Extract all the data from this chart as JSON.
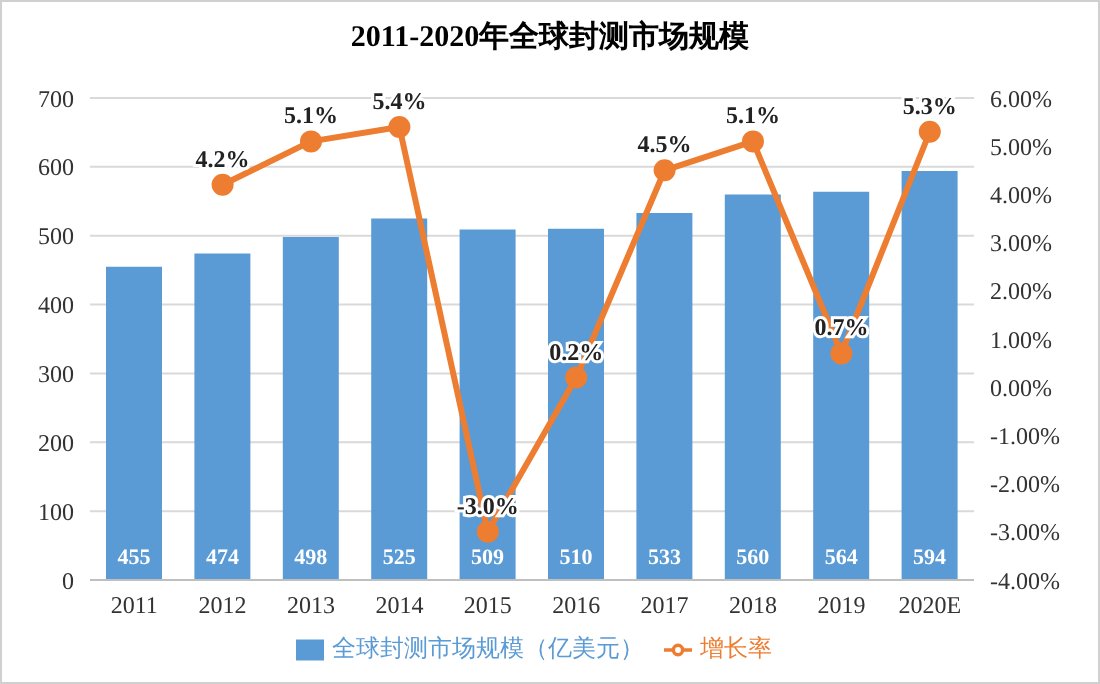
{
  "chart_data": {
    "type": "bar",
    "title": "2011-2020年全球封测市场规模",
    "categories": [
      "2011",
      "2012",
      "2013",
      "2014",
      "2015",
      "2016",
      "2017",
      "2018",
      "2019",
      "2020E"
    ],
    "series": [
      {
        "name": "全球封测市场规模（亿美元）",
        "color": "#5b9bd5",
        "values": [
          455,
          474,
          498,
          525,
          509,
          510,
          533,
          560,
          564,
          594
        ],
        "value_labels": [
          "455",
          "474",
          "498",
          "525",
          "509",
          "510",
          "533",
          "560",
          "564",
          "594"
        ]
      },
      {
        "name": "增长率",
        "type": "line",
        "axis": "y2",
        "color": "#ed7d31",
        "values": [
          null,
          4.2,
          5.1,
          5.4,
          -3.0,
          0.2,
          4.5,
          5.1,
          0.7,
          5.3
        ],
        "value_labels": [
          null,
          "4.2%",
          "5.1%",
          "5.4%",
          "-3.0%",
          "0.2%",
          "4.5%",
          "5.1%",
          "0.7%",
          "5.3%"
        ]
      }
    ],
    "ylim": [
      0,
      700
    ],
    "yticks": [
      0,
      100,
      200,
      300,
      400,
      500,
      600,
      700
    ],
    "y2lim": [
      -4,
      6
    ],
    "y2ticks": [
      {
        "value": -4,
        "label": "-4.00%"
      },
      {
        "value": -3,
        "label": "-3.00%"
      },
      {
        "value": -2,
        "label": "-2.00%"
      },
      {
        "value": -1,
        "label": "-1.00%"
      },
      {
        "value": 0,
        "label": "0.00%"
      },
      {
        "value": 1,
        "label": "1.00%"
      },
      {
        "value": 2,
        "label": "2.00%"
      },
      {
        "value": 3,
        "label": "3.00%"
      },
      {
        "value": 4,
        "label": "4.00%"
      },
      {
        "value": 5,
        "label": "5.00%"
      },
      {
        "value": 6,
        "label": "6.00%"
      }
    ],
    "grid": "y",
    "legend": "bottom",
    "marker": "circle",
    "line_style": "solid"
  }
}
